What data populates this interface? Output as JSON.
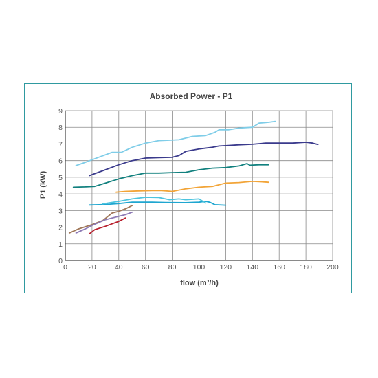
{
  "chart_data": {
    "type": "line",
    "title": "Absorbed Power - P1",
    "xlabel": "flow (m³/h)",
    "ylabel": "P1 (kW)",
    "xlim": [
      0,
      200
    ],
    "ylim": [
      0,
      9
    ],
    "x_ticks": [
      "0",
      "20",
      "40",
      "60",
      "80",
      "100",
      "120",
      "140",
      "160",
      "180",
      "200"
    ],
    "y_ticks": [
      "0",
      "1",
      "2",
      "3",
      "4",
      "5",
      "6",
      "7",
      "8",
      "9"
    ],
    "grid": true,
    "legend": "none",
    "series": [
      {
        "color": "#7fcde8",
        "points": [
          [
            8,
            5.7
          ],
          [
            15,
            5.9
          ],
          [
            25,
            6.2
          ],
          [
            35,
            6.5
          ],
          [
            42,
            6.5
          ],
          [
            50,
            6.8
          ],
          [
            60,
            7.05
          ],
          [
            70,
            7.2
          ],
          [
            85,
            7.25
          ],
          [
            95,
            7.45
          ],
          [
            105,
            7.5
          ],
          [
            112,
            7.7
          ],
          [
            115,
            7.85
          ],
          [
            122,
            7.85
          ],
          [
            130,
            7.95
          ],
          [
            140,
            8.0
          ],
          [
            145,
            8.25
          ],
          [
            152,
            8.3
          ],
          [
            157,
            8.35
          ]
        ]
      },
      {
        "color": "#3a3a8c",
        "points": [
          [
            18,
            5.1
          ],
          [
            30,
            5.45
          ],
          [
            40,
            5.75
          ],
          [
            50,
            6.0
          ],
          [
            60,
            6.15
          ],
          [
            70,
            6.18
          ],
          [
            80,
            6.2
          ],
          [
            85,
            6.3
          ],
          [
            90,
            6.55
          ],
          [
            100,
            6.7
          ],
          [
            110,
            6.8
          ],
          [
            115,
            6.88
          ],
          [
            120,
            6.9
          ],
          [
            130,
            6.95
          ],
          [
            140,
            6.98
          ],
          [
            150,
            7.05
          ],
          [
            162,
            7.05
          ],
          [
            170,
            7.05
          ],
          [
            180,
            7.1
          ],
          [
            185,
            7.05
          ],
          [
            189,
            6.97
          ]
        ]
      },
      {
        "color": "#11807e",
        "points": [
          [
            6,
            4.4
          ],
          [
            15,
            4.42
          ],
          [
            22,
            4.45
          ],
          [
            30,
            4.65
          ],
          [
            40,
            4.9
          ],
          [
            50,
            5.1
          ],
          [
            60,
            5.25
          ],
          [
            70,
            5.25
          ],
          [
            80,
            5.28
          ],
          [
            90,
            5.3
          ],
          [
            100,
            5.45
          ],
          [
            110,
            5.55
          ],
          [
            120,
            5.58
          ],
          [
            130,
            5.68
          ],
          [
            136,
            5.82
          ],
          [
            138,
            5.72
          ],
          [
            145,
            5.75
          ],
          [
            152,
            5.75
          ]
        ]
      },
      {
        "color": "#f2a437",
        "points": [
          [
            38,
            4.1
          ],
          [
            45,
            4.15
          ],
          [
            55,
            4.18
          ],
          [
            65,
            4.2
          ],
          [
            72,
            4.2
          ],
          [
            80,
            4.15
          ],
          [
            90,
            4.3
          ],
          [
            100,
            4.4
          ],
          [
            110,
            4.45
          ],
          [
            120,
            4.65
          ],
          [
            130,
            4.68
          ],
          [
            140,
            4.75
          ],
          [
            148,
            4.72
          ],
          [
            152,
            4.7
          ]
        ]
      },
      {
        "color": "#1fa6d0",
        "points": [
          [
            18,
            3.33
          ],
          [
            30,
            3.36
          ],
          [
            40,
            3.42
          ],
          [
            50,
            3.5
          ],
          [
            55,
            3.5
          ],
          [
            65,
            3.5
          ],
          [
            75,
            3.48
          ],
          [
            90,
            3.47
          ],
          [
            100,
            3.5
          ],
          [
            105,
            3.55
          ],
          [
            108,
            3.5
          ],
          [
            112,
            3.35
          ],
          [
            120,
            3.32
          ]
        ]
      },
      {
        "color": "#4cc4df",
        "points": [
          [
            28,
            3.4
          ],
          [
            40,
            3.55
          ],
          [
            50,
            3.7
          ],
          [
            60,
            3.8
          ],
          [
            70,
            3.78
          ],
          [
            78,
            3.65
          ],
          [
            85,
            3.7
          ],
          [
            90,
            3.65
          ],
          [
            100,
            3.7
          ],
          [
            105,
            3.45
          ]
        ]
      },
      {
        "color": "#a0785a",
        "points": [
          [
            3,
            1.65
          ],
          [
            10,
            1.9
          ],
          [
            20,
            2.15
          ],
          [
            28,
            2.4
          ],
          [
            35,
            2.85
          ],
          [
            40,
            2.95
          ],
          [
            45,
            3.1
          ],
          [
            50,
            3.3
          ]
        ]
      },
      {
        "color": "#8d7ab5",
        "points": [
          [
            8,
            1.65
          ],
          [
            15,
            1.9
          ],
          [
            20,
            2.1
          ],
          [
            30,
            2.45
          ],
          [
            40,
            2.65
          ],
          [
            45,
            2.75
          ],
          [
            50,
            2.9
          ]
        ]
      },
      {
        "color": "#b8202e",
        "points": [
          [
            18,
            1.6
          ],
          [
            22,
            1.85
          ],
          [
            30,
            2.05
          ],
          [
            35,
            2.2
          ],
          [
            40,
            2.35
          ],
          [
            45,
            2.55
          ]
        ]
      }
    ]
  }
}
